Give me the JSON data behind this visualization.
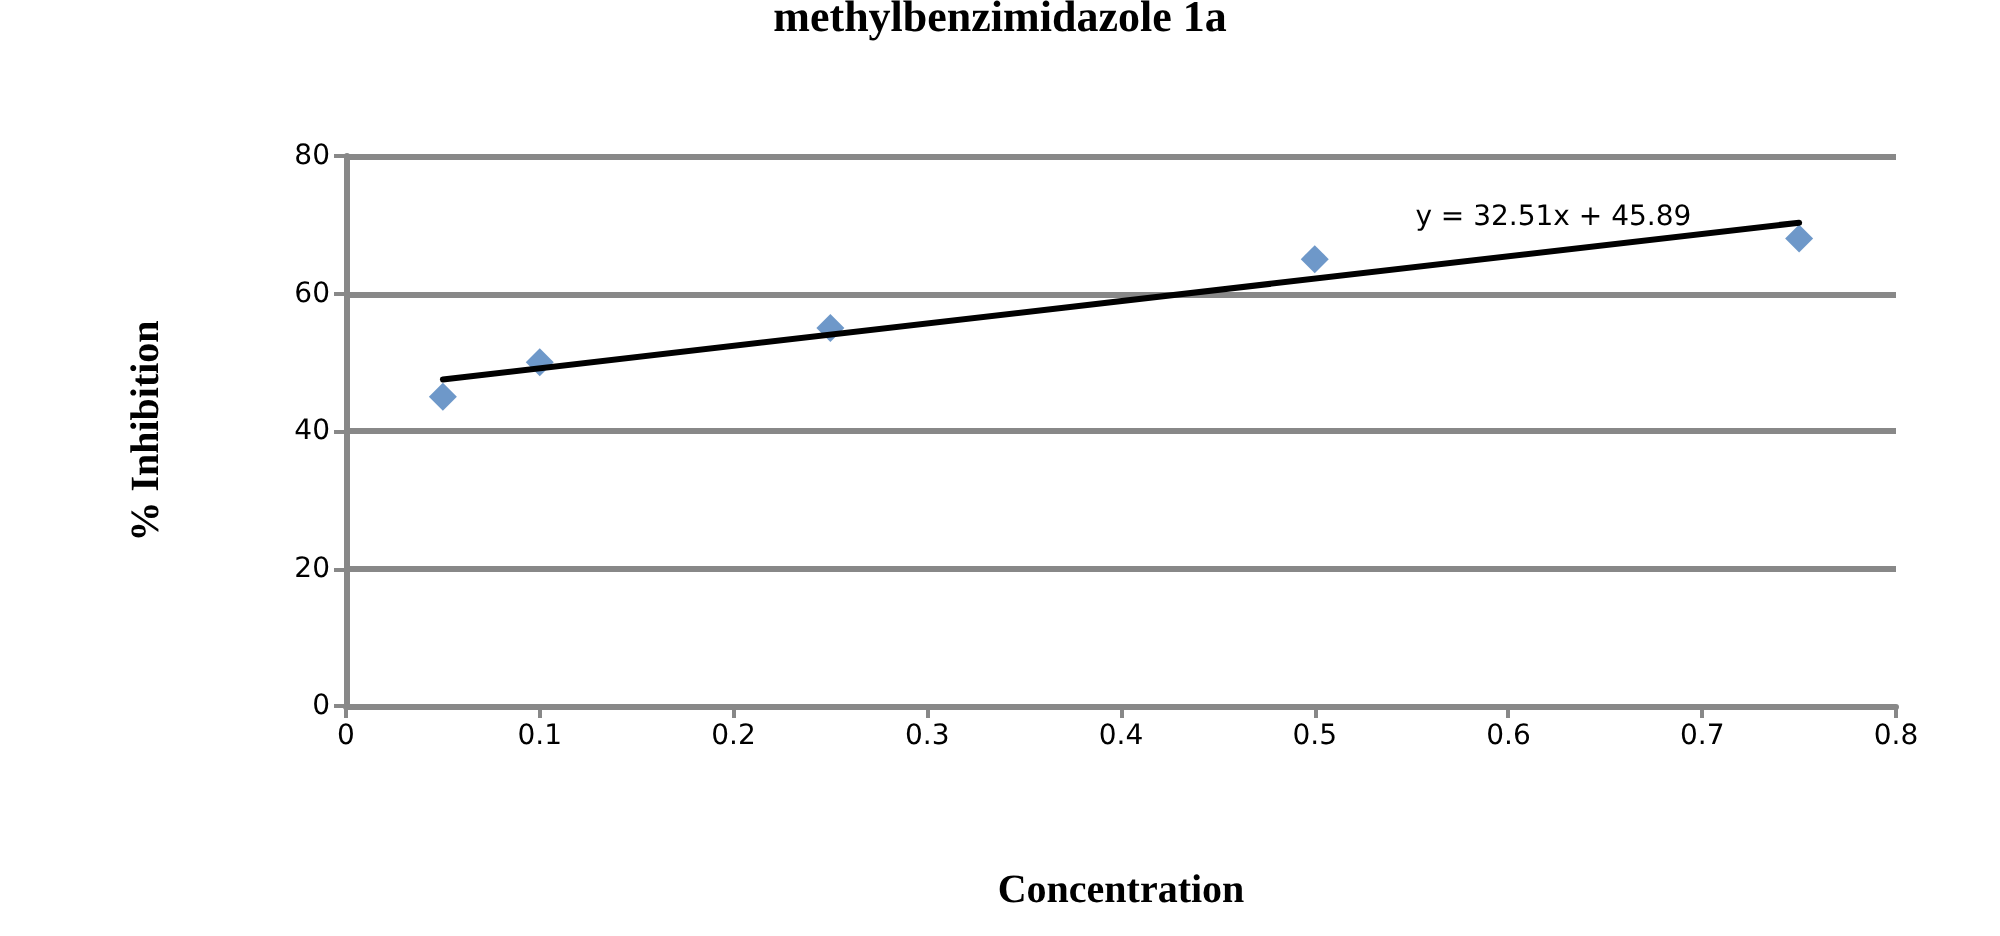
{
  "chart_data": {
    "type": "scatter",
    "title": "methylbenzimidazole 1a",
    "xlabel": "Concentration",
    "ylabel": "% Inhibition",
    "series": [
      {
        "color": "#4a7ebb",
        "x": [
          0.05,
          0.1,
          0.25,
          0.5,
          0.75
        ],
        "values": [
          45,
          50,
          55,
          65,
          68
        ]
      },
      {
        "type": "line",
        "color": "#000000",
        "x": [
          0.05,
          0.75
        ],
        "values": [
          47.5,
          70.3
        ],
        "marker": "none"
      }
    ],
    "marker": "diamond",
    "grid": "y",
    "xlim": [
      0,
      0.8
    ],
    "xticks": [
      0,
      0.1,
      0.2,
      0.3,
      0.4,
      0.5,
      0.6,
      0.7,
      0.8
    ],
    "ylim": [
      0,
      80
    ],
    "yticks": [
      0,
      20,
      40,
      60,
      80
    ],
    "annotations": [
      {
        "text": "y = 32.51x + 45.89",
        "x": 0.65,
        "y": 68
      }
    ]
  }
}
